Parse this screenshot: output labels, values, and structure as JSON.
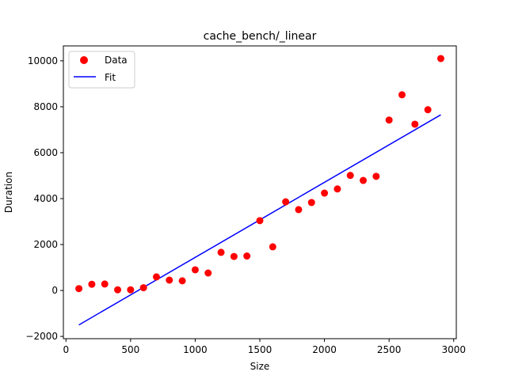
{
  "chart_data": {
    "type": "scatter",
    "title": "cache_bench/_linear",
    "xlabel": "Size",
    "ylabel": "Duration",
    "xlim": [
      -20,
      3020
    ],
    "ylim": [
      -2100,
      10650
    ],
    "xticks": [
      0,
      500,
      1000,
      1500,
      2000,
      2500,
      3000
    ],
    "yticks": [
      -2000,
      0,
      2000,
      4000,
      6000,
      8000,
      10000
    ],
    "grid": false,
    "legend_position": "top-left",
    "series": [
      {
        "name": "Data",
        "kind": "scatter",
        "color": "#ff0000",
        "x": [
          100,
          200,
          300,
          400,
          500,
          600,
          700,
          800,
          900,
          1000,
          1100,
          1200,
          1300,
          1400,
          1500,
          1600,
          1700,
          1800,
          1900,
          2000,
          2100,
          2200,
          2300,
          2400,
          2500,
          2600,
          2700,
          2800,
          2900
        ],
        "y": [
          80,
          270,
          280,
          30,
          30,
          120,
          590,
          450,
          420,
          900,
          760,
          1660,
          1480,
          1500,
          3040,
          1900,
          3860,
          3520,
          3830,
          4240,
          4420,
          5010,
          4790,
          4970,
          7420,
          8520,
          7240,
          7870,
          10100
        ]
      },
      {
        "name": "Fit",
        "kind": "line",
        "color": "#0000ff",
        "x": [
          100,
          2900
        ],
        "y": [
          -1500,
          7650
        ]
      }
    ]
  }
}
